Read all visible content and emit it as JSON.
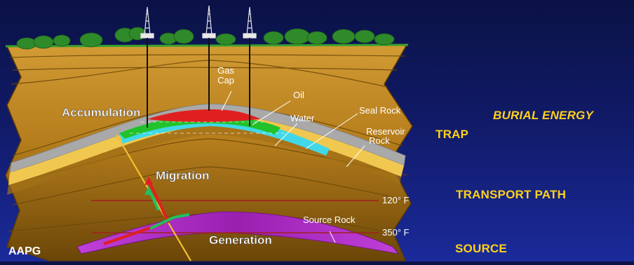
{
  "diagram": {
    "labels": {
      "gas_cap_line1": "Gas",
      "gas_cap_line2": "Cap",
      "oil": "Oil",
      "water": "Water",
      "seal_rock": "Seal Rock",
      "reservoir_line1": "Reservoir",
      "reservoir_line2": "Rock",
      "accumulation": "Accumulation",
      "migration": "Migration",
      "generation": "Generation",
      "source_rock": "Source Rock",
      "temp_120": "120° F",
      "temp_350": "350° F"
    },
    "watermark": "AAPG",
    "colors": {
      "background_top": "#0b1246",
      "background_bottom": "#1a2a9a",
      "rock_light": "#c8912a",
      "rock_dark": "#7a5410",
      "seal_rock": "#a8a8a8",
      "reservoir": "#f0c850",
      "gas": "#e02020",
      "oil": "#20c020",
      "water": "#40d8e8",
      "source_rock": "#b030c8",
      "trees": "#2f8a2a",
      "fault": "#f2c030",
      "label_yellow": "#ffd21a"
    }
  },
  "side_labels": {
    "burial_energy": "BURIAL ENERGY",
    "trap": "TRAP",
    "transport_path": "TRANSPORT PATH",
    "source": "SOURCE"
  }
}
